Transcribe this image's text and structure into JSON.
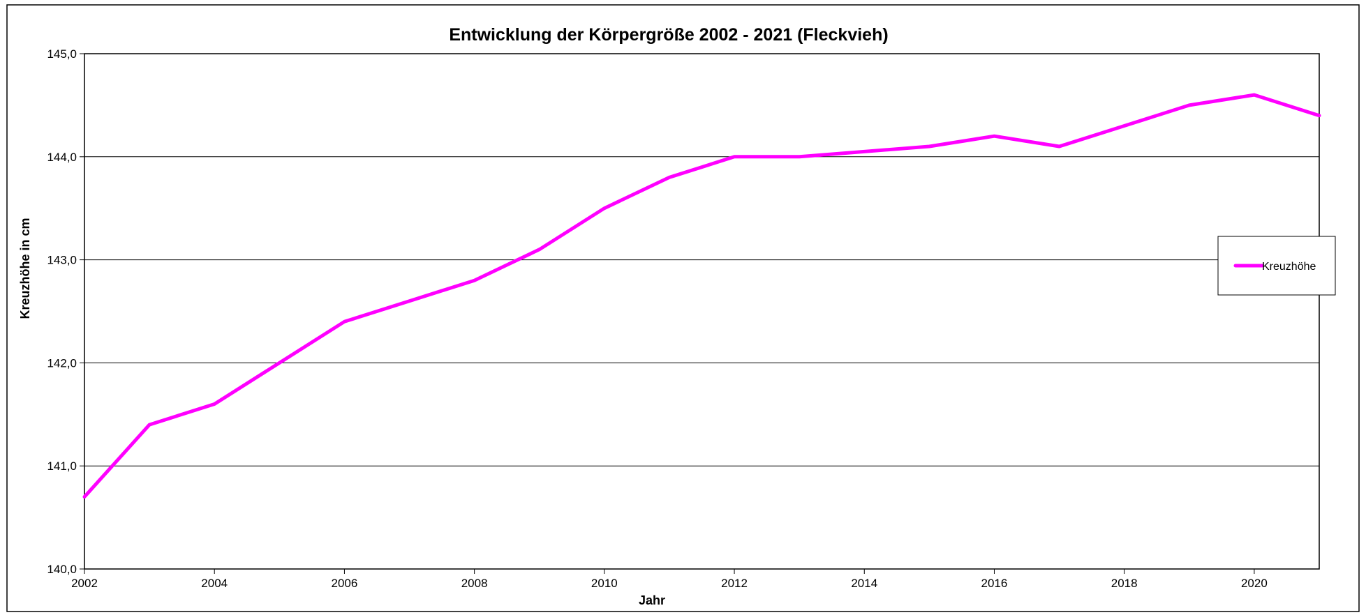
{
  "chart_data": {
    "type": "line",
    "title": "Entwicklung der Körpergröße 2002 - 2021  (Fleckvieh)",
    "xlabel": "Jahr",
    "ylabel": "Kreuzhöhe in cm",
    "x": [
      2002,
      2003,
      2004,
      2005,
      2006,
      2007,
      2008,
      2009,
      2010,
      2011,
      2012,
      2013,
      2014,
      2015,
      2016,
      2017,
      2018,
      2019,
      2020,
      2021
    ],
    "xlim": [
      2002,
      2021
    ],
    "ylim": [
      140.0,
      145.0
    ],
    "xticks": [
      "2002",
      "2004",
      "2006",
      "2008",
      "2010",
      "2012",
      "2014",
      "2016",
      "2018",
      "2020"
    ],
    "yticks": [
      "140,0",
      "141,0",
      "142,0",
      "143,0",
      "144,0",
      "145,0"
    ],
    "grid": "horizontal",
    "legend_position": "right",
    "series": [
      {
        "name": "Kreuzhöhe",
        "color": "#ff00ff",
        "values": [
          140.7,
          141.4,
          141.6,
          142.0,
          142.4,
          142.6,
          142.8,
          143.1,
          143.5,
          143.8,
          144.0,
          144.0,
          144.05,
          144.1,
          144.2,
          144.1,
          144.3,
          144.5,
          144.6,
          144.4
        ]
      }
    ]
  }
}
